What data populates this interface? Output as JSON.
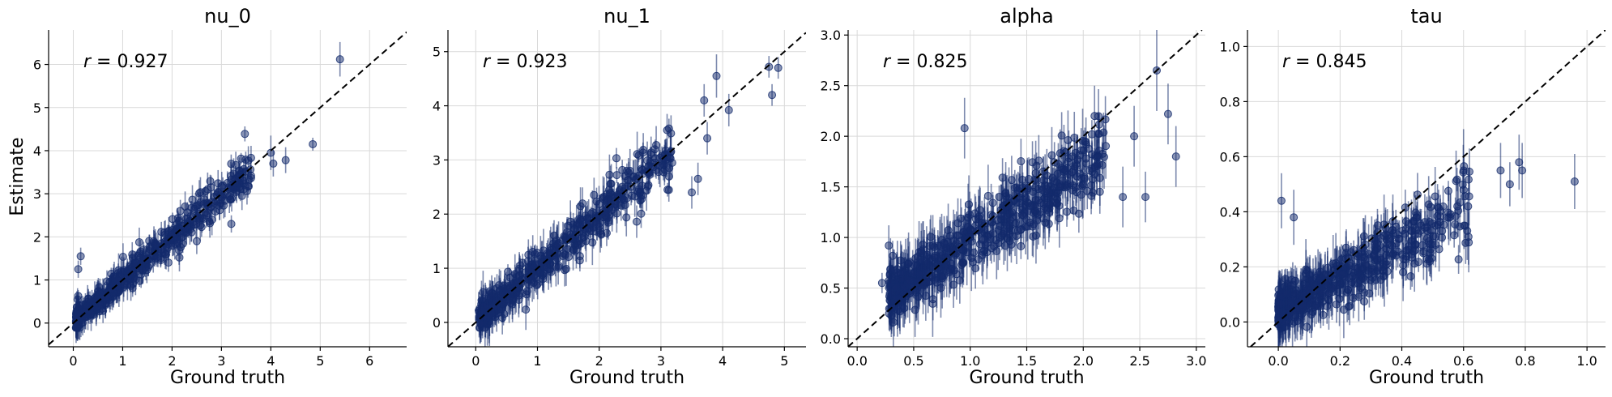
{
  "figure": {
    "ylabel": "Estimate",
    "xlabel": "Ground truth"
  },
  "chart_data": [
    {
      "type": "scatter",
      "title": "nu_0",
      "xlabel": "Ground truth",
      "ylabel": "Estimate",
      "r_label": "= 0.927",
      "r_symbol": "r",
      "xlim": [
        -0.5,
        6.75
      ],
      "ylim": [
        -0.55,
        6.8
      ],
      "xticks": [
        0,
        1,
        2,
        3,
        4,
        5,
        6
      ],
      "yticks": [
        0,
        1,
        2,
        3,
        4,
        5,
        6
      ],
      "grid": true,
      "color": "#132a6b",
      "identity_line": true,
      "cloud": {
        "n": 520,
        "xmin": 0.05,
        "xmax": 3.6,
        "xskew": 1.6,
        "slope": 0.97,
        "intercept": 0.05,
        "noise": 0.22,
        "err": 0.28,
        "seed": 11
      },
      "extra_points": [
        {
          "x": 5.4,
          "y": 6.12,
          "err": 0.4
        },
        {
          "x": 4.85,
          "y": 4.15,
          "err": 0.15
        },
        {
          "x": 4.3,
          "y": 3.78,
          "err": 0.3
        },
        {
          "x": 4.0,
          "y": 3.95,
          "err": 0.4
        },
        {
          "x": 4.05,
          "y": 3.7,
          "err": 0.3
        },
        {
          "x": 3.2,
          "y": 2.3,
          "err": 0.2
        },
        {
          "x": 0.15,
          "y": 1.55,
          "err": 0.2
        },
        {
          "x": 0.1,
          "y": 1.25,
          "err": 0.2
        },
        {
          "x": 2.5,
          "y": 1.9,
          "err": 0.3
        }
      ]
    },
    {
      "type": "scatter",
      "title": "nu_1",
      "xlabel": "Ground truth",
      "ylabel": "",
      "r_label": "= 0.923",
      "r_symbol": "r",
      "xlim": [
        -0.45,
        5.35
      ],
      "ylim": [
        -0.45,
        5.4
      ],
      "xticks": [
        0,
        1,
        2,
        3,
        4,
        5
      ],
      "yticks": [
        0,
        1,
        2,
        3,
        4,
        5
      ],
      "grid": true,
      "color": "#132a6b",
      "identity_line": true,
      "cloud": {
        "n": 520,
        "xmin": 0.05,
        "xmax": 3.2,
        "xskew": 1.5,
        "slope": 0.97,
        "intercept": 0.05,
        "noise": 0.22,
        "err": 0.3,
        "seed": 23
      },
      "extra_points": [
        {
          "x": 4.75,
          "y": 4.72,
          "err": 0.2
        },
        {
          "x": 4.9,
          "y": 4.7,
          "err": 0.2
        },
        {
          "x": 4.8,
          "y": 4.2,
          "err": 0.2
        },
        {
          "x": 3.9,
          "y": 4.55,
          "err": 0.4
        },
        {
          "x": 4.1,
          "y": 3.92,
          "err": 0.3
        },
        {
          "x": 3.7,
          "y": 4.1,
          "err": 0.3
        },
        {
          "x": 3.75,
          "y": 3.4,
          "err": 0.3
        },
        {
          "x": 3.5,
          "y": 2.4,
          "err": 0.3
        },
        {
          "x": 3.1,
          "y": 3.55,
          "err": 0.3
        },
        {
          "x": 3.6,
          "y": 2.65,
          "err": 0.3
        }
      ]
    },
    {
      "type": "scatter",
      "title": "alpha",
      "xlabel": "Ground truth",
      "ylabel": "",
      "r_label": "= 0.825",
      "r_symbol": "r",
      "xlim": [
        -0.08,
        3.08
      ],
      "ylim": [
        -0.08,
        3.05
      ],
      "xticks": [
        0.0,
        0.5,
        1.0,
        1.5,
        2.0,
        2.5,
        3.0
      ],
      "yticks": [
        0.0,
        0.5,
        1.0,
        1.5,
        2.0,
        2.5,
        3.0
      ],
      "grid": true,
      "color": "#132a6b",
      "identity_line": true,
      "cloud": {
        "n": 620,
        "xmin": 0.28,
        "xmax": 2.2,
        "xskew": 1.4,
        "slope": 0.72,
        "intercept": 0.24,
        "noise": 0.17,
        "err": 0.24,
        "seed": 37
      },
      "extra_points": [
        {
          "x": 2.82,
          "y": 1.8,
          "err": 0.3
        },
        {
          "x": 2.75,
          "y": 2.22,
          "err": 0.3
        },
        {
          "x": 2.65,
          "y": 2.65,
          "err": 0.4
        },
        {
          "x": 2.55,
          "y": 1.4,
          "err": 0.25
        },
        {
          "x": 2.45,
          "y": 2.0,
          "err": 0.3
        },
        {
          "x": 2.35,
          "y": 1.4,
          "err": 0.3
        },
        {
          "x": 2.1,
          "y": 2.2,
          "err": 0.3
        },
        {
          "x": 0.95,
          "y": 2.08,
          "err": 0.3
        },
        {
          "x": 0.22,
          "y": 0.55,
          "err": 0.1
        },
        {
          "x": 0.28,
          "y": 0.92,
          "err": 0.2
        }
      ]
    },
    {
      "type": "scatter",
      "title": "tau",
      "xlabel": "Ground truth",
      "ylabel": "",
      "r_label": "= 0.845",
      "r_symbol": "r",
      "xlim": [
        -0.1,
        1.06
      ],
      "ylim": [
        -0.09,
        1.06
      ],
      "xticks": [
        0.0,
        0.2,
        0.4,
        0.6,
        0.8,
        1.0
      ],
      "yticks": [
        0.0,
        0.2,
        0.4,
        0.6,
        0.8,
        1.0
      ],
      "grid": true,
      "color": "#132a6b",
      "identity_line": true,
      "cloud": {
        "n": 560,
        "xmin": 0.0,
        "xmax": 0.62,
        "xskew": 1.9,
        "slope": 0.6,
        "intercept": 0.04,
        "noise": 0.06,
        "err": 0.08,
        "seed": 53
      },
      "extra_points": [
        {
          "x": 0.96,
          "y": 0.51,
          "err": 0.1
        },
        {
          "x": 0.79,
          "y": 0.55,
          "err": 0.1
        },
        {
          "x": 0.78,
          "y": 0.58,
          "err": 0.1
        },
        {
          "x": 0.75,
          "y": 0.5,
          "err": 0.08
        },
        {
          "x": 0.72,
          "y": 0.55,
          "err": 0.1
        },
        {
          "x": 0.6,
          "y": 0.55,
          "err": 0.15
        },
        {
          "x": 0.58,
          "y": 0.42,
          "err": 0.1
        },
        {
          "x": 0.01,
          "y": 0.44,
          "err": 0.1
        },
        {
          "x": 0.05,
          "y": 0.38,
          "err": 0.1
        }
      ]
    }
  ]
}
